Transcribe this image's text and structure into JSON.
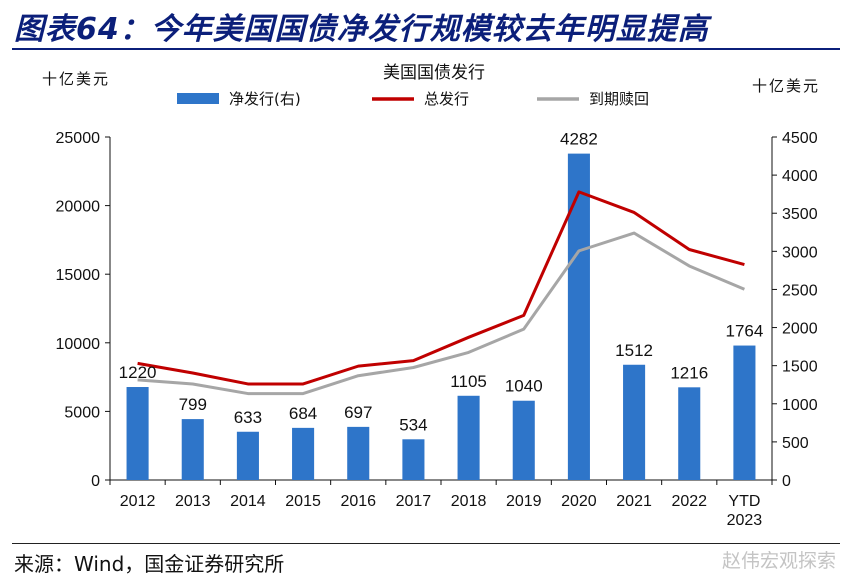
{
  "figure": {
    "title": "图表64：今年美国国债净发行规模较去年明显提高",
    "source": "来源：Wind，国金证券研究所",
    "watermark": "赵伟宏观探索"
  },
  "chart_data": {
    "type": "bar",
    "title": "美国国债发行",
    "ylabel_left": "十亿美元",
    "ylabel_right": "十亿美元",
    "categories": [
      "2012",
      "2013",
      "2014",
      "2015",
      "2016",
      "2017",
      "2018",
      "2019",
      "2020",
      "2021",
      "2022",
      "YTD 2023"
    ],
    "ylim_left": [
      0,
      25000
    ],
    "yticks_left": [
      0,
      5000,
      10000,
      15000,
      20000,
      25000
    ],
    "ylim_right": [
      0,
      4500
    ],
    "yticks_right": [
      0,
      500,
      1000,
      1500,
      2000,
      2500,
      3000,
      3500,
      4000,
      4500
    ],
    "legend_position": "top-center",
    "grid": false,
    "series": [
      {
        "name": "净发行(右)",
        "kind": "bar",
        "axis": "right",
        "color": "#2e75c9",
        "values": [
          1220,
          799,
          633,
          684,
          697,
          534,
          1105,
          1040,
          4282,
          1512,
          1216,
          1764
        ],
        "labels": [
          "1220",
          "799",
          "633",
          "684",
          "697",
          "534",
          "1105",
          "1040",
          "4282",
          "1512",
          "1216",
          "1764"
        ]
      },
      {
        "name": "总发行",
        "kind": "line",
        "axis": "left",
        "color": "#c00000",
        "values": [
          8500,
          7800,
          7000,
          7000,
          8300,
          8700,
          10400,
          12000,
          21000,
          19500,
          16800,
          15700
        ]
      },
      {
        "name": "到期赎回",
        "kind": "line",
        "axis": "left",
        "color": "#a6a6a6",
        "values": [
          7300,
          7000,
          6300,
          6300,
          7600,
          8200,
          9300,
          11000,
          16700,
          18000,
          15600,
          13900
        ]
      }
    ]
  }
}
